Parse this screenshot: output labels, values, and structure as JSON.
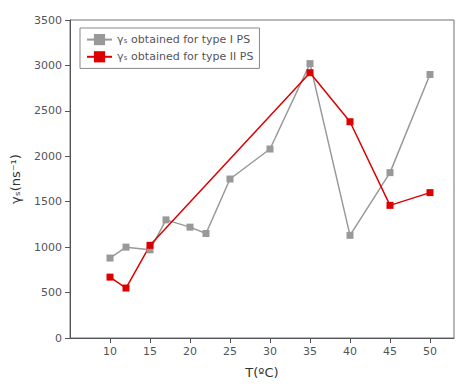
{
  "chart_data": {
    "type": "line",
    "xlabel": "T(ºC)",
    "ylabel": "γₛ(ns⁻¹)",
    "xlim": [
      5,
      53
    ],
    "xticks": [
      10,
      15,
      20,
      25,
      30,
      35,
      40,
      45,
      50
    ],
    "ylim": [
      0,
      3500
    ],
    "yticks": [
      0,
      500,
      1000,
      1500,
      2000,
      2500,
      3000,
      3500
    ],
    "grid": false,
    "legend": "upper left",
    "marker": "square",
    "series": [
      {
        "name": "γₛ obtained for type I PS",
        "color": "#999999",
        "x": [
          10,
          12,
          15,
          17,
          20,
          22,
          25,
          30,
          35,
          40,
          45,
          50
        ],
        "values": [
          880,
          1000,
          970,
          1300,
          1220,
          1150,
          1750,
          2080,
          3020,
          1130,
          1820,
          2900
        ]
      },
      {
        "name": "γₛ obtained for type II PS",
        "color": "#dd0000",
        "x": [
          10,
          12,
          15,
          35,
          40,
          45,
          50
        ],
        "values": [
          670,
          550,
          1020,
          2920,
          2380,
          1460,
          1600
        ]
      }
    ]
  }
}
